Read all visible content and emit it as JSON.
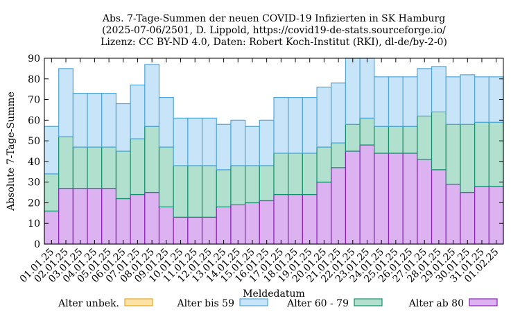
{
  "chart_data": {
    "type": "bar",
    "stacked": true,
    "title_lines": [
      "Abs. 7-Tage-Summen der neuen COVID-19 Infizierten in SK Hamburg",
      "(2025-07-06/2501, D. Lippold, https://covid19-de-stats.sourceforge.io/",
      "Lizenz: CC BY-ND 4.0, Daten: Robert Koch-Institut (RKI), dl-de/by-2-0)"
    ],
    "xlabel": "Meldedatum",
    "ylabel": "Absolute 7-Tage-Summe",
    "ylim": [
      0,
      90
    ],
    "yticks": [
      0,
      10,
      20,
      30,
      40,
      50,
      60,
      70,
      80,
      90
    ],
    "grid": false,
    "legend_position": "bottom",
    "categories": [
      "01.01.25",
      "02.01.25",
      "03.01.25",
      "04.01.25",
      "05.01.25",
      "06.01.25",
      "07.01.25",
      "08.01.25",
      "09.01.25",
      "10.01.25",
      "11.01.25",
      "12.01.25",
      "13.01.25",
      "14.01.25",
      "15.01.25",
      "16.01.25",
      "17.01.25",
      "18.01.25",
      "19.01.25",
      "20.01.25",
      "21.01.25",
      "22.01.25",
      "23.01.25",
      "24.01.25",
      "25.01.25",
      "26.01.25",
      "27.01.25",
      "28.01.25",
      "29.01.25",
      "30.01.25",
      "31.01.25",
      "01.02.25"
    ],
    "series": [
      {
        "name": "Alter ab 80",
        "fill": "#dcb2f0",
        "stroke": "#8a1fb8",
        "values": [
          16,
          27,
          27,
          27,
          27,
          22,
          24,
          25,
          18,
          13,
          13,
          13,
          18,
          19,
          20,
          21,
          24,
          24,
          24,
          30,
          37,
          45,
          48,
          44,
          44,
          44,
          41,
          36,
          29,
          25,
          28,
          28
        ]
      },
      {
        "name": "Alter 60 - 79",
        "fill": "#b1e0cf",
        "stroke": "#13906a",
        "values": [
          18,
          25,
          20,
          20,
          20,
          23,
          27,
          32,
          29,
          25,
          25,
          25,
          18,
          19,
          18,
          17,
          20,
          20,
          20,
          17,
          12,
          13,
          13,
          13,
          13,
          13,
          21,
          28,
          29,
          33,
          31,
          31
        ]
      },
      {
        "name": "Alter bis 59",
        "fill": "#c8e4f8",
        "stroke": "#4fa6d8",
        "values": [
          23,
          33,
          26,
          26,
          26,
          23,
          26,
          30,
          24,
          23,
          23,
          23,
          22,
          22,
          19,
          22,
          27,
          27,
          27,
          29,
          29,
          32,
          30,
          24,
          24,
          24,
          23,
          22,
          23,
          24,
          22,
          22
        ]
      },
      {
        "name": "Alter unbek.",
        "fill": "#fbe3a8",
        "stroke": "#e3a81b",
        "values": [
          0,
          0,
          0,
          0,
          0,
          0,
          0,
          0,
          0,
          0,
          0,
          0,
          0,
          0,
          0,
          0,
          0,
          0,
          0,
          0,
          0,
          0,
          0,
          0,
          0,
          0,
          0,
          0,
          0,
          0,
          0,
          0
        ]
      }
    ],
    "legend_order": [
      "Alter unbek.",
      "Alter bis 59",
      "Alter 60 - 79",
      "Alter ab 80"
    ]
  }
}
